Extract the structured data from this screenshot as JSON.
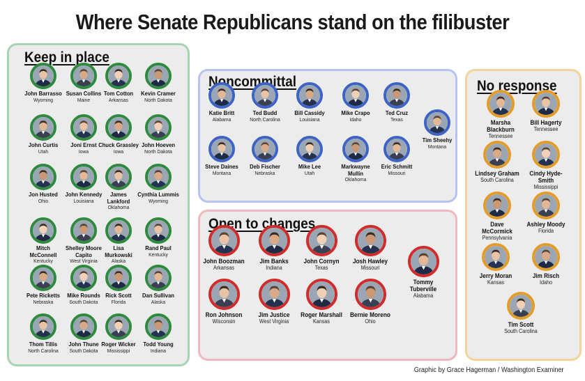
{
  "title": "Where Senate Republicans stand on the filibuster",
  "credit": "Graphic by Grace Hagerman / Washington Examiner",
  "colors": {
    "keep": "#2e8a3c",
    "noncommittal": "#3d63c7",
    "open": "#d02c2c",
    "no_response": "#e49c28"
  },
  "groups": {
    "keep": {
      "label": "Keep in place",
      "members": [
        {
          "name": "John Barrasso",
          "state": "Wyoming"
        },
        {
          "name": "Susan Collins",
          "state": "Maine"
        },
        {
          "name": "Tom Cotton",
          "state": "Arkansas"
        },
        {
          "name": "Kevin Cramer",
          "state": "North Dakota"
        },
        {
          "name": "John Curtis",
          "state": "Utah"
        },
        {
          "name": "Joni Ernst",
          "state": "Iowa"
        },
        {
          "name": "Chuck Grassley",
          "state": "Iowa"
        },
        {
          "name": "John Hoeven",
          "state": "North Dakota"
        },
        {
          "name": "Jon Husted",
          "state": "Ohio"
        },
        {
          "name": "John Kennedy",
          "state": "Louisiana"
        },
        {
          "name": "James\nLankford",
          "state": "Oklahoma"
        },
        {
          "name": "Cynthia Lummis",
          "state": "Wyoming"
        },
        {
          "name": "Mitch\nMcConnell",
          "state": "Kentucky"
        },
        {
          "name": "Shelley Moore\nCapito",
          "state": "West Virginia"
        },
        {
          "name": "Lisa\nMurkowski",
          "state": "Alaska"
        },
        {
          "name": "Rand Paul",
          "state": "Kentucky"
        },
        {
          "name": "Pete Ricketts",
          "state": "Nebraska"
        },
        {
          "name": "Mike Rounds",
          "state": "South Dakota"
        },
        {
          "name": "Rick Scott",
          "state": "Florida"
        },
        {
          "name": "Dan Sullivan",
          "state": "Alaska"
        },
        {
          "name": "Thom Tillis",
          "state": "North Carolina"
        },
        {
          "name": "John Thune",
          "state": "South Dakota"
        },
        {
          "name": "Roger Wicker",
          "state": "Mississippi"
        },
        {
          "name": "Todd Young",
          "state": "Indiana"
        }
      ]
    },
    "noncommittal": {
      "label": "Noncommittal",
      "members": [
        {
          "name": "Katie Britt",
          "state": "Alabama"
        },
        {
          "name": "Ted Budd",
          "state": "North Carolina"
        },
        {
          "name": "Bill Cassidy",
          "state": "Louisiana"
        },
        {
          "name": "Mike Crapo",
          "state": "Idaho"
        },
        {
          "name": "Ted Cruz",
          "state": "Texas"
        },
        {
          "name": "Tim Sheehy",
          "state": "Montana"
        },
        {
          "name": "Steve Daines",
          "state": "Montana"
        },
        {
          "name": "Deb Fischer",
          "state": "Nebraska"
        },
        {
          "name": "Mike Lee",
          "state": "Utah"
        },
        {
          "name": "Markwayne\nMullin",
          "state": "Oklahoma"
        },
        {
          "name": "Eric Schmitt",
          "state": "Missouri"
        }
      ]
    },
    "open": {
      "label": "Open to changes",
      "members": [
        {
          "name": "John Boozman",
          "state": "Arkansas"
        },
        {
          "name": "Jim Banks",
          "state": "Indiana"
        },
        {
          "name": "John Cornyn",
          "state": "Texas"
        },
        {
          "name": "Josh Hawley",
          "state": "Missouri"
        },
        {
          "name": "Tommy Tuberville",
          "state": "Alabama"
        },
        {
          "name": "Ron Johnson",
          "state": "Wisconsin"
        },
        {
          "name": "Jim Justice",
          "state": "West Virginia"
        },
        {
          "name": "Roger Marshall",
          "state": "Kansas"
        },
        {
          "name": "Bernie Moreno",
          "state": "Ohio"
        }
      ]
    },
    "no_response": {
      "label": "No response",
      "members": [
        {
          "name": "Marsha Blackburn",
          "state": "Tennessee"
        },
        {
          "name": "Bill Hagerty",
          "state": "Tennessee"
        },
        {
          "name": "Lindsey Graham",
          "state": "South Carolina"
        },
        {
          "name": "Cindy Hyde-Smith",
          "state": "Mississippi"
        },
        {
          "name": "Dave McCormick",
          "state": "Pennsylvania"
        },
        {
          "name": "Ashley Moody",
          "state": "Florida"
        },
        {
          "name": "Jerry Moran",
          "state": "Kansas"
        },
        {
          "name": "Jim Risch",
          "state": "Idaho"
        },
        {
          "name": "Tim Scott",
          "state": "South Carolina"
        }
      ]
    }
  }
}
